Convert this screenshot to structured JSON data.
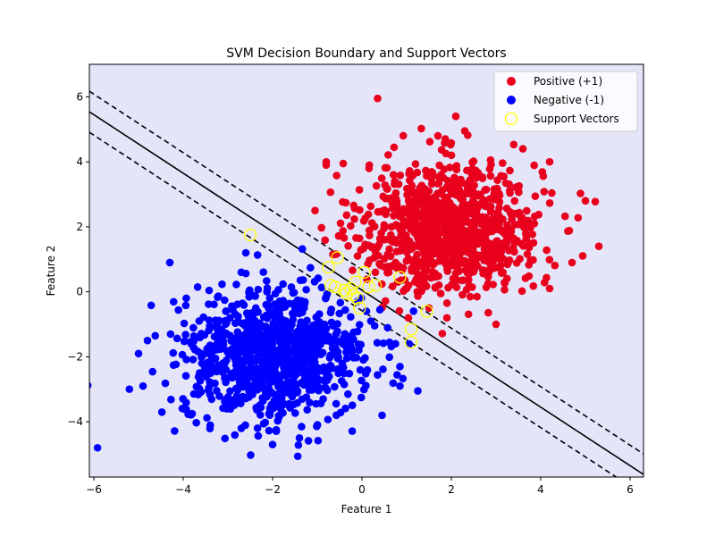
{
  "chart_data": {
    "type": "scatter",
    "title": "SVM Decision Boundary and Support Vectors",
    "xlabel": "Feature 1",
    "ylabel": "Feature 2",
    "xlim": [
      -6.1,
      6.3
    ],
    "ylim": [
      -5.7,
      7.0
    ],
    "xticks": [
      -6,
      -4,
      -2,
      0,
      2,
      4,
      6
    ],
    "yticks": [
      -4,
      -2,
      0,
      2,
      4,
      6
    ],
    "grid": false,
    "legend_position": "top-right",
    "background_color": "#e5e5fa",
    "decision_boundary": {
      "slope": -0.9,
      "intercept": 0.05,
      "margin_offset": 0.63
    },
    "series": [
      {
        "name": "Positive (+1)",
        "color": "#e8001c",
        "marker": "filled-circle",
        "cluster_center": [
          2.0,
          2.0
        ],
        "cluster_spread": 1.0,
        "point_count": 1000,
        "points": [
          [
            0.35,
            5.95
          ],
          [
            2.1,
            5.4
          ],
          [
            2.3,
            4.95
          ],
          [
            1.7,
            4.8
          ],
          [
            3.6,
            4.4
          ],
          [
            4.2,
            4.0
          ],
          [
            -0.8,
            4.0
          ],
          [
            -0.8,
            3.9
          ],
          [
            5.0,
            2.8
          ],
          [
            5.3,
            1.4
          ],
          [
            4.7,
            0.9
          ],
          [
            4.2,
            0.1
          ],
          [
            3.0,
            -1.0
          ],
          [
            1.9,
            -0.8
          ],
          [
            1.5,
            -0.5
          ],
          [
            -1.05,
            2.5
          ],
          [
            -0.65,
            1.15
          ],
          [
            -0.1,
            1.1
          ],
          [
            0.3,
            0.6
          ],
          [
            0.6,
            0.6
          ],
          [
            1.0,
            0.1
          ],
          [
            0.8,
            0.3
          ]
        ]
      },
      {
        "name": "Negative (-1)",
        "color": "#0000ff",
        "marker": "filled-circle",
        "cluster_center": [
          -2.0,
          -2.0
        ],
        "cluster_spread": 1.0,
        "point_count": 1000,
        "points": [
          [
            -4.3,
            0.9
          ],
          [
            -5.0,
            -1.9
          ],
          [
            -4.9,
            -2.9
          ],
          [
            -4.8,
            -1.5
          ],
          [
            -3.8,
            -3.75
          ],
          [
            -2.0,
            -4.7
          ],
          [
            -1.4,
            -4.5
          ],
          [
            -2.7,
            -4.2
          ],
          [
            0.45,
            -3.8
          ],
          [
            1.25,
            -3.05
          ],
          [
            0.85,
            -2.9
          ],
          [
            0.75,
            -1.6
          ],
          [
            0.85,
            -2.3
          ],
          [
            0.2,
            -0.9
          ],
          [
            -0.1,
            -0.3
          ],
          [
            0.1,
            -0.6
          ],
          [
            -2.6,
            1.2
          ],
          [
            -2.7,
            0.6
          ]
        ]
      },
      {
        "name": "Support Vectors",
        "color": "#ffff00",
        "marker": "hollow-circle",
        "points": [
          [
            -2.5,
            1.75
          ],
          [
            -0.55,
            1.05
          ],
          [
            -0.75,
            0.75
          ],
          [
            0.05,
            0.6
          ],
          [
            0.85,
            0.45
          ],
          [
            0.3,
            0.2
          ],
          [
            0.15,
            0.15
          ],
          [
            -0.7,
            0.2
          ],
          [
            -0.6,
            0.15
          ],
          [
            -0.4,
            0.05
          ],
          [
            -0.35,
            -0.05
          ],
          [
            -0.2,
            -0.1
          ],
          [
            -0.25,
            0.1
          ],
          [
            -0.15,
            0.3
          ],
          [
            -0.1,
            -0.2
          ],
          [
            -0.05,
            -0.5
          ],
          [
            1.1,
            -1.15
          ],
          [
            1.1,
            -1.55
          ],
          [
            1.45,
            -0.6
          ]
        ]
      }
    ]
  }
}
